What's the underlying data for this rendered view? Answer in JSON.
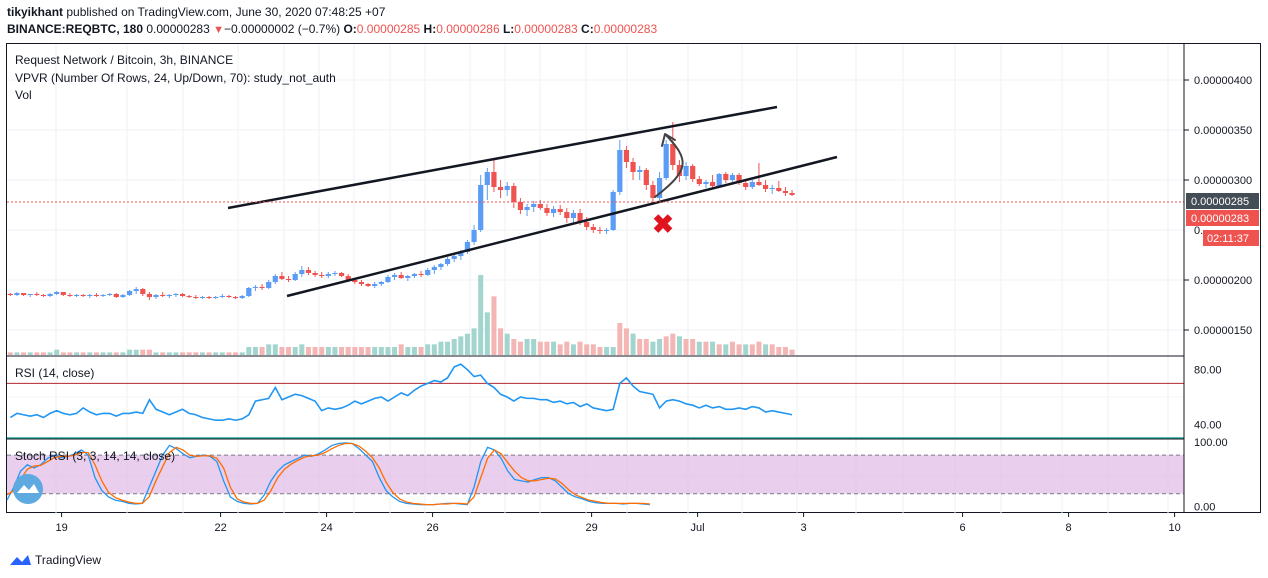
{
  "header": {
    "author": "tikyikhant",
    "published_text": "published on TradingView.com, June 30, 2020 07:48:25 +07",
    "symbol_line": "BINANCE:REQBTC, 180",
    "last_price": "0.00000283",
    "change_arrow": "▼",
    "change": "−0.00000002 (−0.7%)",
    "o_label": "O:",
    "o_value": "0.00000285",
    "h_label": "H:",
    "h_value": "0.00000286",
    "l_label": "L:",
    "l_value": "0.00000283",
    "c_label": "C:",
    "c_value": "0.00000283"
  },
  "legend": {
    "title": "Request Network / Bitcoin, 3h, BINANCE",
    "vpvr": "VPVR (Number Of Rows, 24, Up/Down, 70): study_not_auth",
    "vol": "Vol",
    "rsi": "RSI (14, close)",
    "stoch": "Stoch RSI (3, 3, 14, 14, close)"
  },
  "price_badges": {
    "prev": "0.00000285",
    "last": "0.00000283",
    "countdown": "02:11:37"
  },
  "footer": {
    "brand": "TradingView"
  },
  "colors": {
    "up": "#5b9cf6",
    "down": "#ef5350",
    "rsi_line": "#2196f3",
    "rsi_upper": "#b22833",
    "rsi_lower": "#26a69a",
    "stoch_k": "#2196f3",
    "stoch_d": "#ff6d00",
    "stoch_band": "#e1bee7"
  },
  "chart_data": [
    {
      "type": "candlestick",
      "title": "Request Network / Bitcoin, 3h, BINANCE",
      "price_ylim": [
        1.25e-06,
        4.35e-06
      ],
      "y_ticks": [
        "0.00000400",
        "0.00000350",
        "0.00000300",
        "0.00000200",
        "0.00000150"
      ],
      "x_ticks": [
        "19",
        "22",
        "24",
        "26",
        "29",
        "Jul",
        "3",
        "6",
        "8",
        "10"
      ],
      "scale": "days since Jun 18, 2020 00:00; 1 candle = 3h",
      "ohlc": [
        [
          1.86,
          1.87,
          1.84,
          1.85
        ],
        [
          1.85,
          1.88,
          1.84,
          1.87
        ],
        [
          1.87,
          1.87,
          1.84,
          1.85
        ],
        [
          1.85,
          1.86,
          1.83,
          1.86
        ],
        [
          1.86,
          1.88,
          1.84,
          1.85
        ],
        [
          1.85,
          1.86,
          1.83,
          1.84
        ],
        [
          1.84,
          1.87,
          1.83,
          1.86
        ],
        [
          1.86,
          1.89,
          1.85,
          1.88
        ],
        [
          1.88,
          1.88,
          1.84,
          1.85
        ],
        [
          1.85,
          1.87,
          1.83,
          1.84
        ],
        [
          1.84,
          1.86,
          1.83,
          1.85
        ],
        [
          1.85,
          1.86,
          1.83,
          1.84
        ],
        [
          1.84,
          1.86,
          1.82,
          1.85
        ],
        [
          1.85,
          1.87,
          1.83,
          1.84
        ],
        [
          1.84,
          1.86,
          1.83,
          1.85
        ],
        [
          1.85,
          1.87,
          1.84,
          1.86
        ],
        [
          1.86,
          1.87,
          1.82,
          1.83
        ],
        [
          1.83,
          1.86,
          1.82,
          1.85
        ],
        [
          1.85,
          1.9,
          1.84,
          1.89
        ],
        [
          1.89,
          1.93,
          1.86,
          1.91
        ],
        [
          1.91,
          1.92,
          1.84,
          1.86
        ],
        [
          1.86,
          1.88,
          1.8,
          1.83
        ],
        [
          1.83,
          1.86,
          1.81,
          1.85
        ],
        [
          1.85,
          1.88,
          1.83,
          1.84
        ],
        [
          1.84,
          1.86,
          1.82,
          1.85
        ],
        [
          1.85,
          1.87,
          1.83,
          1.86
        ],
        [
          1.86,
          1.87,
          1.83,
          1.84
        ],
        [
          1.84,
          1.85,
          1.82,
          1.83
        ],
        [
          1.83,
          1.85,
          1.81,
          1.82
        ],
        [
          1.82,
          1.84,
          1.81,
          1.83
        ],
        [
          1.83,
          1.84,
          1.81,
          1.82
        ],
        [
          1.82,
          1.84,
          1.81,
          1.83
        ],
        [
          1.83,
          1.86,
          1.82,
          1.84
        ],
        [
          1.84,
          1.85,
          1.82,
          1.83
        ],
        [
          1.83,
          1.84,
          1.81,
          1.82
        ],
        [
          1.82,
          1.85,
          1.81,
          1.84
        ],
        [
          1.84,
          1.93,
          1.83,
          1.92
        ],
        [
          1.92,
          1.95,
          1.89,
          1.93
        ],
        [
          1.93,
          1.96,
          1.9,
          1.92
        ],
        [
          1.92,
          2.0,
          1.91,
          1.98
        ],
        [
          1.98,
          2.06,
          1.96,
          2.04
        ],
        [
          2.04,
          2.08,
          2.0,
          2.01
        ],
        [
          2.01,
          2.04,
          1.98,
          2.0
        ],
        [
          2.0,
          2.08,
          1.99,
          2.06
        ],
        [
          2.06,
          2.14,
          2.03,
          2.1
        ],
        [
          2.1,
          2.13,
          2.05,
          2.07
        ],
        [
          2.07,
          2.09,
          2.03,
          2.05
        ],
        [
          2.05,
          2.08,
          2.02,
          2.04
        ],
        [
          2.04,
          2.08,
          2.02,
          2.06
        ],
        [
          2.06,
          2.09,
          2.04,
          2.07
        ],
        [
          2.07,
          2.08,
          2.03,
          2.04
        ],
        [
          2.04,
          2.06,
          1.98,
          2.0
        ],
        [
          2.0,
          2.02,
          1.96,
          1.98
        ],
        [
          1.98,
          2.0,
          1.94,
          1.96
        ],
        [
          1.96,
          1.97,
          1.93,
          1.94
        ],
        [
          1.94,
          1.98,
          1.92,
          1.96
        ],
        [
          1.96,
          1.99,
          1.94,
          1.98
        ],
        [
          1.98,
          2.05,
          1.97,
          2.03
        ],
        [
          2.03,
          2.07,
          2.0,
          2.05
        ],
        [
          2.05,
          2.08,
          2.01,
          2.02
        ],
        [
          2.02,
          2.05,
          1.99,
          2.04
        ],
        [
          2.04,
          2.07,
          2.02,
          2.06
        ],
        [
          2.06,
          2.09,
          2.03,
          2.05
        ],
        [
          2.05,
          2.12,
          2.04,
          2.1
        ],
        [
          2.1,
          2.15,
          2.06,
          2.13
        ],
        [
          2.13,
          2.17,
          2.1,
          2.16
        ],
        [
          2.16,
          2.23,
          2.14,
          2.21
        ],
        [
          2.21,
          2.26,
          2.18,
          2.24
        ],
        [
          2.24,
          2.3,
          2.2,
          2.28
        ],
        [
          2.28,
          2.4,
          2.26,
          2.38
        ],
        [
          2.38,
          2.55,
          2.35,
          2.5
        ],
        [
          2.5,
          3.05,
          2.48,
          2.95
        ],
        [
          2.95,
          3.12,
          2.8,
          3.08
        ],
        [
          3.08,
          3.2,
          2.88,
          2.93
        ],
        [
          2.93,
          3.0,
          2.82,
          2.9
        ],
        [
          2.9,
          2.98,
          2.84,
          2.94
        ],
        [
          2.94,
          2.97,
          2.72,
          2.78
        ],
        [
          2.78,
          2.82,
          2.66,
          2.7
        ],
        [
          2.7,
          2.76,
          2.64,
          2.73
        ],
        [
          2.73,
          2.79,
          2.68,
          2.76
        ],
        [
          2.76,
          2.8,
          2.7,
          2.72
        ],
        [
          2.72,
          2.76,
          2.64,
          2.67
        ],
        [
          2.67,
          2.74,
          2.63,
          2.71
        ],
        [
          2.71,
          2.75,
          2.65,
          2.68
        ],
        [
          2.68,
          2.72,
          2.57,
          2.62
        ],
        [
          2.62,
          2.7,
          2.57,
          2.67
        ],
        [
          2.67,
          2.71,
          2.55,
          2.58
        ],
        [
          2.58,
          2.63,
          2.5,
          2.53
        ],
        [
          2.53,
          2.56,
          2.47,
          2.5
        ],
        [
          2.5,
          2.53,
          2.46,
          2.49
        ],
        [
          2.49,
          2.52,
          2.46,
          2.5
        ],
        [
          2.5,
          2.9,
          2.49,
          2.88
        ],
        [
          2.88,
          3.4,
          2.85,
          3.3
        ],
        [
          3.3,
          3.34,
          3.12,
          3.18
        ],
        [
          3.18,
          3.22,
          3.0,
          3.08
        ],
        [
          3.08,
          3.14,
          3.0,
          3.1
        ],
        [
          3.1,
          3.12,
          2.9,
          2.95
        ],
        [
          2.95,
          2.99,
          2.78,
          2.82
        ],
        [
          2.82,
          3.08,
          2.8,
          3.02
        ],
        [
          3.02,
          3.4,
          3.0,
          3.36
        ],
        [
          3.36,
          3.58,
          3.1,
          3.15
        ],
        [
          3.15,
          3.2,
          2.98,
          3.04
        ],
        [
          3.04,
          3.18,
          3.0,
          3.14
        ],
        [
          3.14,
          3.16,
          2.98,
          3.01
        ],
        [
          3.01,
          3.04,
          2.94,
          2.96
        ],
        [
          2.96,
          3.0,
          2.92,
          2.98
        ],
        [
          2.98,
          3.05,
          2.92,
          2.94
        ],
        [
          2.94,
          3.07,
          2.93,
          3.06
        ],
        [
          3.06,
          3.08,
          2.97,
          3.0
        ],
        [
          3.0,
          3.07,
          2.98,
          3.05
        ],
        [
          3.05,
          3.07,
          2.95,
          2.97
        ],
        [
          2.97,
          3.0,
          2.9,
          2.93
        ],
        [
          2.93,
          3.0,
          2.91,
          2.98
        ],
        [
          2.98,
          3.17,
          2.94,
          2.95
        ],
        [
          2.95,
          3.0,
          2.88,
          2.91
        ],
        [
          2.91,
          2.95,
          2.86,
          2.92
        ],
        [
          2.92,
          2.99,
          2.88,
          2.89
        ],
        [
          2.89,
          2.93,
          2.84,
          2.87
        ],
        [
          2.87,
          2.9,
          2.84,
          2.85
        ]
      ]
    },
    {
      "type": "bar",
      "title": "Vol",
      "values": [
        1,
        1,
        1,
        1,
        1,
        1,
        1,
        2,
        1,
        1,
        1,
        1,
        1,
        1,
        1,
        1,
        1,
        1,
        2,
        2,
        2,
        2,
        1,
        1,
        1,
        1,
        1,
        1,
        1,
        1,
        1,
        1,
        1,
        1,
        1,
        1,
        3,
        3,
        3,
        4,
        4,
        3,
        3,
        3,
        4,
        3,
        3,
        3,
        3,
        3,
        3,
        3,
        3,
        3,
        3,
        3,
        3,
        3,
        3,
        4,
        3,
        3,
        3,
        4,
        4,
        5,
        5,
        6,
        7,
        8,
        10,
        30,
        16,
        22,
        10,
        8,
        6,
        5,
        6,
        6,
        5,
        5,
        5,
        4,
        5,
        4,
        5,
        4,
        4,
        3,
        3,
        3,
        12,
        10,
        8,
        6,
        6,
        5,
        6,
        7,
        8,
        7,
        6,
        6,
        5,
        5,
        5,
        4,
        4,
        5,
        4,
        4,
        4,
        5,
        4,
        4,
        3,
        3,
        2
      ],
      "down_flags": [
        1,
        0,
        1,
        0,
        1,
        1,
        0,
        0,
        1,
        1,
        0,
        1,
        0,
        1,
        0,
        0,
        1,
        0,
        0,
        0,
        1,
        1,
        0,
        1,
        0,
        0,
        1,
        1,
        1,
        0,
        1,
        0,
        0,
        1,
        1,
        0,
        0,
        0,
        1,
        0,
        0,
        1,
        1,
        0,
        0,
        1,
        1,
        1,
        0,
        0,
        1,
        1,
        1,
        1,
        1,
        0,
        0,
        0,
        0,
        1,
        0,
        0,
        1,
        0,
        0,
        0,
        0,
        0,
        0,
        0,
        0,
        0,
        0,
        1,
        1,
        0,
        1,
        1,
        0,
        0,
        1,
        1,
        0,
        1,
        1,
        0,
        1,
        1,
        1,
        1,
        0,
        0,
        1,
        1,
        0,
        1,
        1,
        0,
        0,
        1,
        1,
        0,
        1,
        1,
        0,
        1,
        0,
        1,
        0,
        1,
        1,
        0,
        1,
        1,
        0,
        1,
        1,
        1,
        1
      ]
    },
    {
      "type": "line",
      "title": "RSI (14, close)",
      "ylim": [
        30,
        90
      ],
      "y_ticks": [
        "80.00",
        "40.00"
      ],
      "bands": [
        70,
        30
      ],
      "values": [
        45,
        48,
        47,
        46,
        47,
        45,
        48,
        50,
        48,
        47,
        48,
        52,
        49,
        47,
        48,
        48,
        46,
        48,
        48,
        49,
        48,
        58,
        51,
        49,
        47,
        49,
        51,
        48,
        47,
        45,
        44,
        43,
        43,
        44,
        43,
        44,
        47,
        57,
        58,
        59,
        67,
        58,
        60,
        62,
        61,
        59,
        57,
        50,
        52,
        51,
        52,
        54,
        57,
        55,
        57,
        59,
        60,
        57,
        60,
        63,
        61,
        65,
        68,
        70,
        72,
        71,
        74,
        82,
        84,
        80,
        75,
        76,
        70,
        67,
        62,
        60,
        57,
        60,
        59,
        59,
        58,
        58,
        56,
        57,
        55,
        56,
        53,
        55,
        52,
        51,
        50,
        51,
        70,
        74,
        68,
        64,
        63,
        62,
        52,
        57,
        58,
        57,
        55,
        54,
        52,
        54,
        52,
        53,
        51,
        51,
        52,
        51,
        53,
        52,
        49,
        50,
        49,
        48,
        47
      ]
    },
    {
      "type": "line",
      "title": "Stoch RSI (3, 3, 14, 14, close)",
      "ylim": [
        -10,
        105
      ],
      "y_ticks": [
        "100.00",
        "0.00"
      ],
      "bands": [
        80,
        20
      ],
      "series": [
        {
          "name": "K",
          "values": [
            10,
            30,
            55,
            65,
            60,
            65,
            75,
            80,
            76,
            78,
            82,
            88,
            80,
            45,
            25,
            15,
            10,
            8,
            5,
            4,
            5,
            30,
            55,
            80,
            95,
            90,
            82,
            76,
            78,
            80,
            78,
            70,
            40,
            15,
            8,
            5,
            4,
            5,
            18,
            40,
            55,
            65,
            70,
            75,
            80,
            78,
            82,
            88,
            95,
            98,
            99,
            98,
            90,
            80,
            70,
            45,
            25,
            15,
            8,
            5,
            4,
            3,
            3,
            3,
            4,
            5,
            5,
            4,
            3,
            30,
            70,
            92,
            88,
            75,
            55,
            42,
            40,
            38,
            42,
            45,
            45,
            40,
            30,
            20,
            15,
            12,
            8,
            6,
            5,
            5,
            5,
            4,
            5,
            5,
            4,
            3
          ]
        },
        {
          "name": "D",
          "values": [
            18,
            25,
            42,
            58,
            63,
            64,
            70,
            76,
            78,
            78,
            80,
            84,
            84,
            65,
            40,
            22,
            14,
            10,
            7,
            5,
            5,
            15,
            40,
            62,
            84,
            92,
            88,
            80,
            78,
            79,
            79,
            75,
            60,
            30,
            12,
            7,
            5,
            5,
            10,
            25,
            45,
            58,
            66,
            72,
            77,
            79,
            80,
            84,
            90,
            95,
            98,
            98,
            94,
            86,
            76,
            60,
            38,
            22,
            12,
            7,
            5,
            4,
            3,
            3,
            4,
            4,
            5,
            5,
            4,
            15,
            45,
            75,
            88,
            82,
            68,
            55,
            45,
            40,
            40,
            42,
            44,
            43,
            36,
            26,
            18,
            14,
            10,
            8,
            6,
            5,
            5,
            5,
            5,
            5,
            5,
            4
          ]
        }
      ]
    }
  ]
}
